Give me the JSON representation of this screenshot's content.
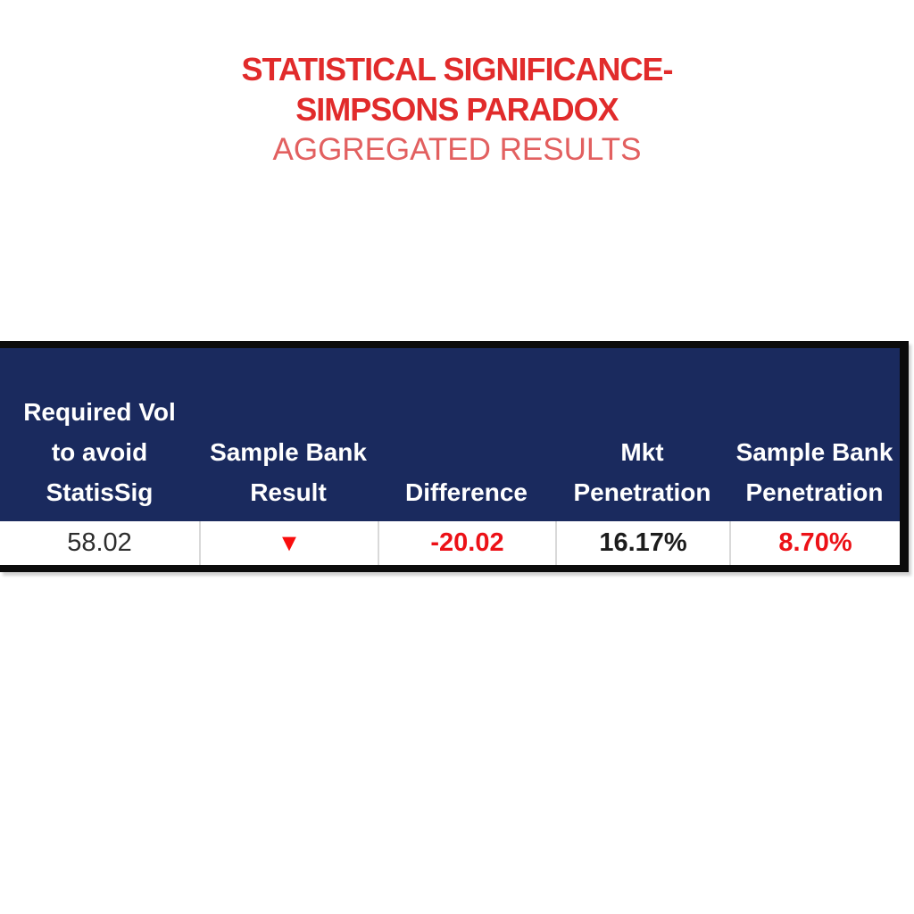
{
  "title": {
    "line1": "STATISTICAL SIGNIFICANCE-",
    "line2": "SIMPSONS PARADOX",
    "line3": "AGGREGATED RESULTS"
  },
  "table": {
    "columns": [
      {
        "header_lines": [
          "Required Vol",
          "to avoid",
          "StatisSig"
        ],
        "value": "58.02"
      },
      {
        "header_lines": [
          "Sample Bank",
          "Result"
        ],
        "value": "▼"
      },
      {
        "header_lines": [
          "Difference"
        ],
        "value": "-20.02"
      },
      {
        "header_lines": [
          "Mkt",
          "Penetration"
        ],
        "value": "16.17%"
      },
      {
        "header_lines": [
          "Sample Bank",
          "Penetration"
        ],
        "value": "8.70%"
      }
    ]
  },
  "icons": {
    "down_triangle": "▼"
  },
  "colors": {
    "header_bg": "#1a2a5e",
    "title_red": "#e12b2b",
    "subtitle_red": "#e26060",
    "value_red": "#ec1117",
    "triangle_red": "#f90d0d",
    "border_black": "#0c0c0c",
    "cell_divider": "#d9d9d9",
    "text_dark": "#2d2d2d"
  },
  "chart_data": {
    "type": "table",
    "title": "STATISTICAL SIGNIFICANCE- SIMPSONS PARADOX",
    "subtitle": "AGGREGATED RESULTS",
    "columns": [
      "Required Vol to avoid StatisSig",
      "Sample Bank Result",
      "Difference",
      "Mkt Penetration",
      "Sample Bank Penetration"
    ],
    "rows": [
      [
        "58.02",
        "▼ (red down-triangle)",
        "-20.02",
        "16.17%",
        "8.70%"
      ]
    ],
    "notes": "Single data row; Difference and Sample Bank Penetration shown in red; Sample Bank Result is a red downward triangle indicator."
  }
}
